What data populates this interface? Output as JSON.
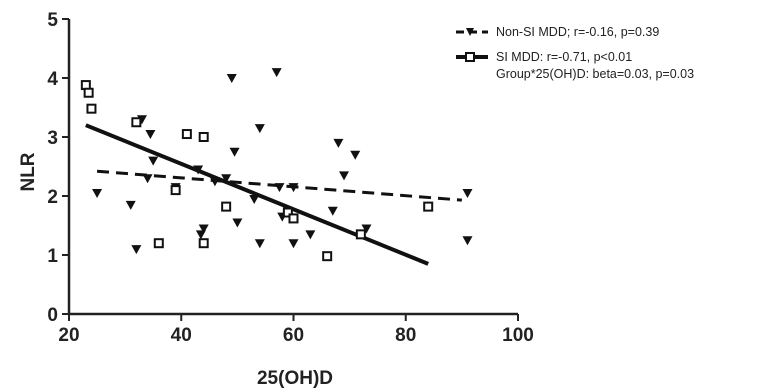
{
  "chart_data": {
    "type": "scatter",
    "xlabel": "25(OH)D",
    "ylabel": "NLR",
    "xlim": [
      20,
      100
    ],
    "ylim": [
      0,
      5
    ],
    "xticks": [
      "20",
      "40",
      "60",
      "80",
      "100"
    ],
    "yticks": [
      "0",
      "1",
      "2",
      "3",
      "4",
      "5"
    ],
    "grid": false,
    "legend_position": "top-right",
    "series": [
      {
        "name": "Non-SI MDD; r=-0.16, p=0.39",
        "marker": "triangle-down",
        "line_style": "dashed",
        "fit_line": [
          [
            25,
            2.42
          ],
          [
            90,
            1.93
          ]
        ],
        "points": [
          [
            25,
            2.05
          ],
          [
            31,
            1.85
          ],
          [
            32,
            1.1
          ],
          [
            33,
            3.3
          ],
          [
            34,
            2.3
          ],
          [
            34.5,
            3.05
          ],
          [
            35,
            2.6
          ],
          [
            39,
            2.15
          ],
          [
            43,
            2.45
          ],
          [
            43.5,
            1.35
          ],
          [
            44,
            1.45
          ],
          [
            46,
            2.25
          ],
          [
            48,
            2.3
          ],
          [
            49,
            4.0
          ],
          [
            49.5,
            2.75
          ],
          [
            50,
            1.55
          ],
          [
            53,
            1.95
          ],
          [
            54,
            3.15
          ],
          [
            54,
            1.2
          ],
          [
            57,
            4.1
          ],
          [
            57.5,
            2.15
          ],
          [
            58,
            1.65
          ],
          [
            60,
            2.15
          ],
          [
            60,
            1.2
          ],
          [
            63,
            1.35
          ],
          [
            67,
            1.75
          ],
          [
            68,
            2.9
          ],
          [
            69,
            2.35
          ],
          [
            71,
            2.7
          ],
          [
            73,
            1.45
          ],
          [
            91,
            2.05
          ],
          [
            91,
            1.25
          ]
        ]
      },
      {
        "name": "SI MDD: r=-0.71, p<0.01",
        "marker": "square",
        "line_style": "solid",
        "fit_line": [
          [
            23,
            3.2
          ],
          [
            84,
            0.85
          ]
        ],
        "points": [
          [
            23,
            3.88
          ],
          [
            23.5,
            3.75
          ],
          [
            24,
            3.48
          ],
          [
            32,
            3.25
          ],
          [
            36,
            1.2
          ],
          [
            39,
            2.1
          ],
          [
            41,
            3.05
          ],
          [
            44,
            3.0
          ],
          [
            44,
            1.2
          ],
          [
            48,
            1.82
          ],
          [
            59,
            1.72
          ],
          [
            60,
            1.62
          ],
          [
            66,
            0.98
          ],
          [
            72,
            1.35
          ],
          [
            84,
            1.82
          ]
        ]
      }
    ],
    "annotation": "Group*25(OH)D: beta=0.03, p=0.03"
  }
}
